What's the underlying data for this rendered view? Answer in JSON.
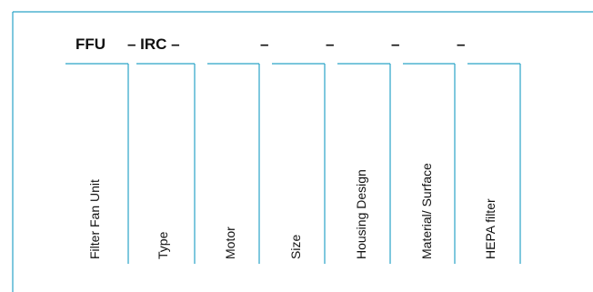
{
  "code": {
    "segments": [
      "FFU",
      "– IRC –",
      "–",
      "–",
      "–",
      "–"
    ]
  },
  "fields": [
    {
      "label": "Filter Fan Unit"
    },
    {
      "label": "Type"
    },
    {
      "label": "Motor"
    },
    {
      "label": "Size"
    },
    {
      "label": "Housing Design"
    },
    {
      "label": "Material/ Surface"
    },
    {
      "label": "HEPA filter"
    }
  ],
  "colors": {
    "line": "#2aa3c8",
    "text": "#111111",
    "background": "#ffffff"
  }
}
